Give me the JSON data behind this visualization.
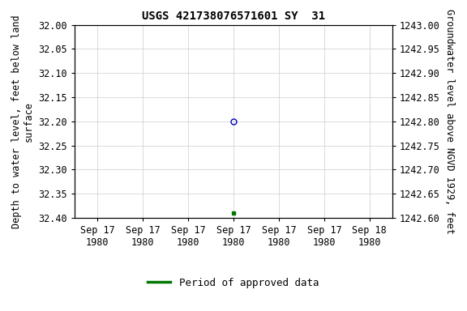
{
  "title": "USGS 421738076571601 SY  31",
  "ylabel_left": "Depth to water level, feet below land\nsurface",
  "ylabel_right": "Groundwater level above NGVD 1929, feet",
  "ylim_left": [
    32.4,
    32.0
  ],
  "ylim_right": [
    1242.6,
    1243.0
  ],
  "yticks_left": [
    32.0,
    32.05,
    32.1,
    32.15,
    32.2,
    32.25,
    32.3,
    32.35,
    32.4
  ],
  "yticks_right": [
    1242.6,
    1242.65,
    1242.7,
    1242.75,
    1242.8,
    1242.85,
    1242.9,
    1242.95,
    1243.0
  ],
  "xlim": [
    -0.5,
    6.5
  ],
  "xtick_labels": [
    "Sep 17\n1980",
    "Sep 17\n1980",
    "Sep 17\n1980",
    "Sep 17\n1980",
    "Sep 17\n1980",
    "Sep 17\n1980",
    "Sep 18\n1980"
  ],
  "xtick_positions": [
    0,
    1,
    2,
    3,
    4,
    5,
    6
  ],
  "blue_point_x": 3.0,
  "blue_point_y": 32.2,
  "green_point_x": 3.0,
  "green_point_y": 32.39,
  "blue_color": "#0000bb",
  "green_color": "#007700",
  "legend_label": "Period of approved data",
  "background_color": "#ffffff",
  "grid_color": "#cccccc",
  "title_fontsize": 10,
  "label_fontsize": 8.5,
  "tick_fontsize": 8.5
}
